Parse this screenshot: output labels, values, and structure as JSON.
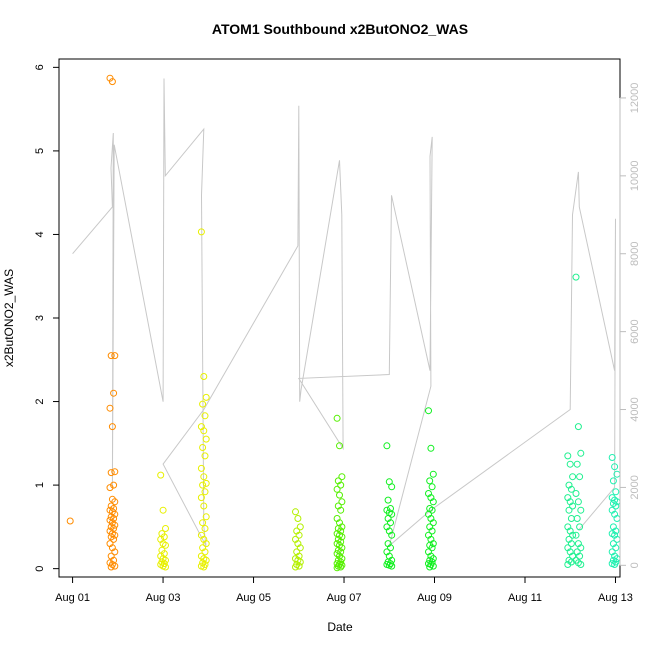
{
  "chart_data": {
    "type": "scatter",
    "title": "ATOM1 Southbound x2ButONO2_WAS",
    "xlabel": "Date",
    "ylabel": "x2ButONO2_WAS",
    "x_ticks": [
      "Aug 01",
      "Aug 03",
      "Aug 05",
      "Aug 07",
      "Aug 09",
      "Aug 11",
      "Aug 13"
    ],
    "y_ticks": [
      "0",
      "1",
      "2",
      "3",
      "4",
      "5",
      "6"
    ],
    "y2_ticks": [
      "0",
      "2000",
      "4000",
      "6000",
      "8000",
      "10000",
      "12000"
    ],
    "xlim_days": [
      0.7,
      13.1
    ],
    "ylim": [
      -0.1,
      6.1
    ],
    "y2lim": [
      -300,
      13000
    ],
    "grid": false,
    "legend": "none",
    "colors": {
      "line": "#c8c8c8",
      "axis": "#000000",
      "axis_right": "#bdbdbd",
      "groups": [
        "#ff8c00",
        "#e8f000",
        "#b4f000",
        "#55f000",
        "#10f020",
        "#10e040",
        "#20f090",
        "#20f0b0"
      ]
    },
    "scatter_groups": [
      {
        "day": 1.0,
        "color": 0,
        "values": [
          0.57
        ]
      },
      {
        "day": 1.88,
        "color": 0,
        "values": [
          5.87,
          5.83,
          2.55,
          2.55,
          2.1,
          1.92,
          1.7,
          1.16,
          1.15,
          1.0,
          0.97,
          0.83,
          0.8,
          0.75,
          0.72,
          0.7,
          0.68,
          0.65,
          0.62,
          0.6,
          0.58,
          0.55,
          0.52,
          0.5,
          0.48,
          0.45,
          0.42,
          0.4,
          0.38,
          0.35,
          0.3,
          0.25,
          0.2,
          0.15,
          0.1,
          0.07,
          0.05,
          0.03,
          0.02
        ]
      },
      {
        "day": 3.0,
        "color": 1,
        "values": [
          1.12,
          0.7,
          0.48,
          0.42,
          0.38,
          0.35,
          0.3,
          0.28,
          0.22,
          0.18,
          0.15,
          0.12,
          0.1,
          0.08,
          0.06,
          0.05,
          0.03,
          0.02
        ]
      },
      {
        "day": 3.9,
        "color": 1,
        "values": [
          4.03,
          2.3,
          2.05,
          1.97,
          1.83,
          1.7,
          1.65,
          1.55,
          1.45,
          1.35,
          1.2,
          1.1,
          1.02,
          1.0,
          0.92,
          0.85,
          0.75,
          0.62,
          0.55,
          0.48,
          0.4,
          0.35,
          0.3,
          0.25,
          0.2,
          0.15,
          0.12,
          0.1,
          0.07,
          0.05,
          0.03,
          0.02
        ]
      },
      {
        "day": 5.98,
        "color": 2,
        "values": [
          0.68,
          0.6,
          0.5,
          0.45,
          0.4,
          0.35,
          0.3,
          0.25,
          0.2,
          0.15,
          0.12,
          0.1,
          0.08,
          0.05,
          0.03,
          0.02
        ]
      },
      {
        "day": 6.9,
        "color": 3,
        "values": [
          1.8,
          1.47,
          1.1,
          1.05,
          1.0,
          0.95,
          0.88,
          0.8,
          0.75,
          0.7,
          0.6,
          0.55,
          0.5,
          0.48,
          0.45,
          0.42,
          0.4,
          0.38,
          0.35,
          0.32,
          0.3,
          0.28,
          0.25,
          0.22,
          0.2,
          0.18,
          0.15,
          0.12,
          0.1,
          0.08,
          0.06,
          0.05,
          0.04,
          0.03,
          0.02,
          0.01
        ]
      },
      {
        "day": 8.0,
        "color": 4,
        "values": [
          1.47,
          1.04,
          0.98,
          0.82,
          0.72,
          0.7,
          0.67,
          0.65,
          0.6,
          0.55,
          0.5,
          0.45,
          0.4,
          0.3,
          0.25,
          0.2,
          0.15,
          0.1,
          0.08,
          0.06,
          0.05,
          0.04,
          0.03
        ]
      },
      {
        "day": 8.92,
        "color": 4,
        "values": [
          1.89,
          1.44,
          1.13,
          1.05,
          0.98,
          0.9,
          0.85,
          0.8,
          0.72,
          0.7,
          0.65,
          0.6,
          0.55,
          0.5,
          0.45,
          0.4,
          0.35,
          0.3,
          0.28,
          0.25,
          0.2,
          0.15,
          0.12,
          0.1,
          0.08,
          0.06,
          0.05,
          0.03,
          0.02
        ]
      },
      {
        "day": 12.0,
        "color": 6,
        "values": [
          1.35,
          1.25,
          1.1,
          1.0,
          0.95,
          0.85,
          0.8,
          0.75,
          0.7,
          0.6,
          0.5,
          0.45,
          0.4,
          0.35,
          0.3,
          0.25,
          0.2,
          0.15,
          0.1,
          0.08,
          0.05
        ]
      },
      {
        "day": 12.18,
        "color": 6,
        "values": [
          3.49,
          1.7,
          1.38,
          1.25,
          1.1,
          0.9,
          0.8,
          0.7,
          0.6,
          0.5,
          0.4,
          0.3,
          0.25,
          0.2,
          0.15,
          0.1,
          0.07,
          0.05
        ]
      },
      {
        "day": 12.98,
        "color": 7,
        "values": [
          1.33,
          1.22,
          1.13,
          1.05,
          0.92,
          0.85,
          0.82,
          0.8,
          0.78,
          0.75,
          0.7,
          0.65,
          0.6,
          0.5,
          0.45,
          0.42,
          0.4,
          0.35,
          0.3,
          0.25,
          0.2,
          0.15,
          0.12,
          0.1,
          0.08,
          0.06,
          0.05
        ]
      }
    ],
    "y2_line_points": [
      [
        1.0,
        8000
      ],
      [
        1.88,
        9200
      ],
      [
        1.85,
        10200
      ],
      [
        1.9,
        11100
      ],
      [
        1.88,
        2000
      ],
      [
        1.92,
        10800
      ],
      [
        3.0,
        4200
      ],
      [
        3.02,
        12500
      ],
      [
        3.05,
        10000
      ],
      [
        3.9,
        11200
      ],
      [
        3.85,
        9500
      ],
      [
        3.9,
        1000
      ],
      [
        3.95,
        500
      ],
      [
        3.0,
        2600
      ],
      [
        3.9,
        4000
      ],
      [
        5.98,
        8200
      ],
      [
        6.0,
        11800
      ],
      [
        6.02,
        4200
      ],
      [
        6.05,
        4500
      ],
      [
        6.9,
        10400
      ],
      [
        6.95,
        9000
      ],
      [
        6.98,
        3000
      ],
      [
        6.0,
        4800
      ],
      [
        8.0,
        4900
      ],
      [
        8.05,
        9500
      ],
      [
        8.9,
        5000
      ],
      [
        8.95,
        11000
      ],
      [
        8.9,
        10500
      ],
      [
        8.92,
        4600
      ],
      [
        8.0,
        500
      ],
      [
        8.9,
        1400
      ],
      [
        12.0,
        4000
      ],
      [
        12.05,
        9000
      ],
      [
        12.18,
        10100
      ],
      [
        12.2,
        9200
      ],
      [
        12.98,
        5000
      ],
      [
        13.0,
        8900
      ],
      [
        12.98,
        2000
      ],
      [
        12.18,
        900
      ]
    ]
  }
}
